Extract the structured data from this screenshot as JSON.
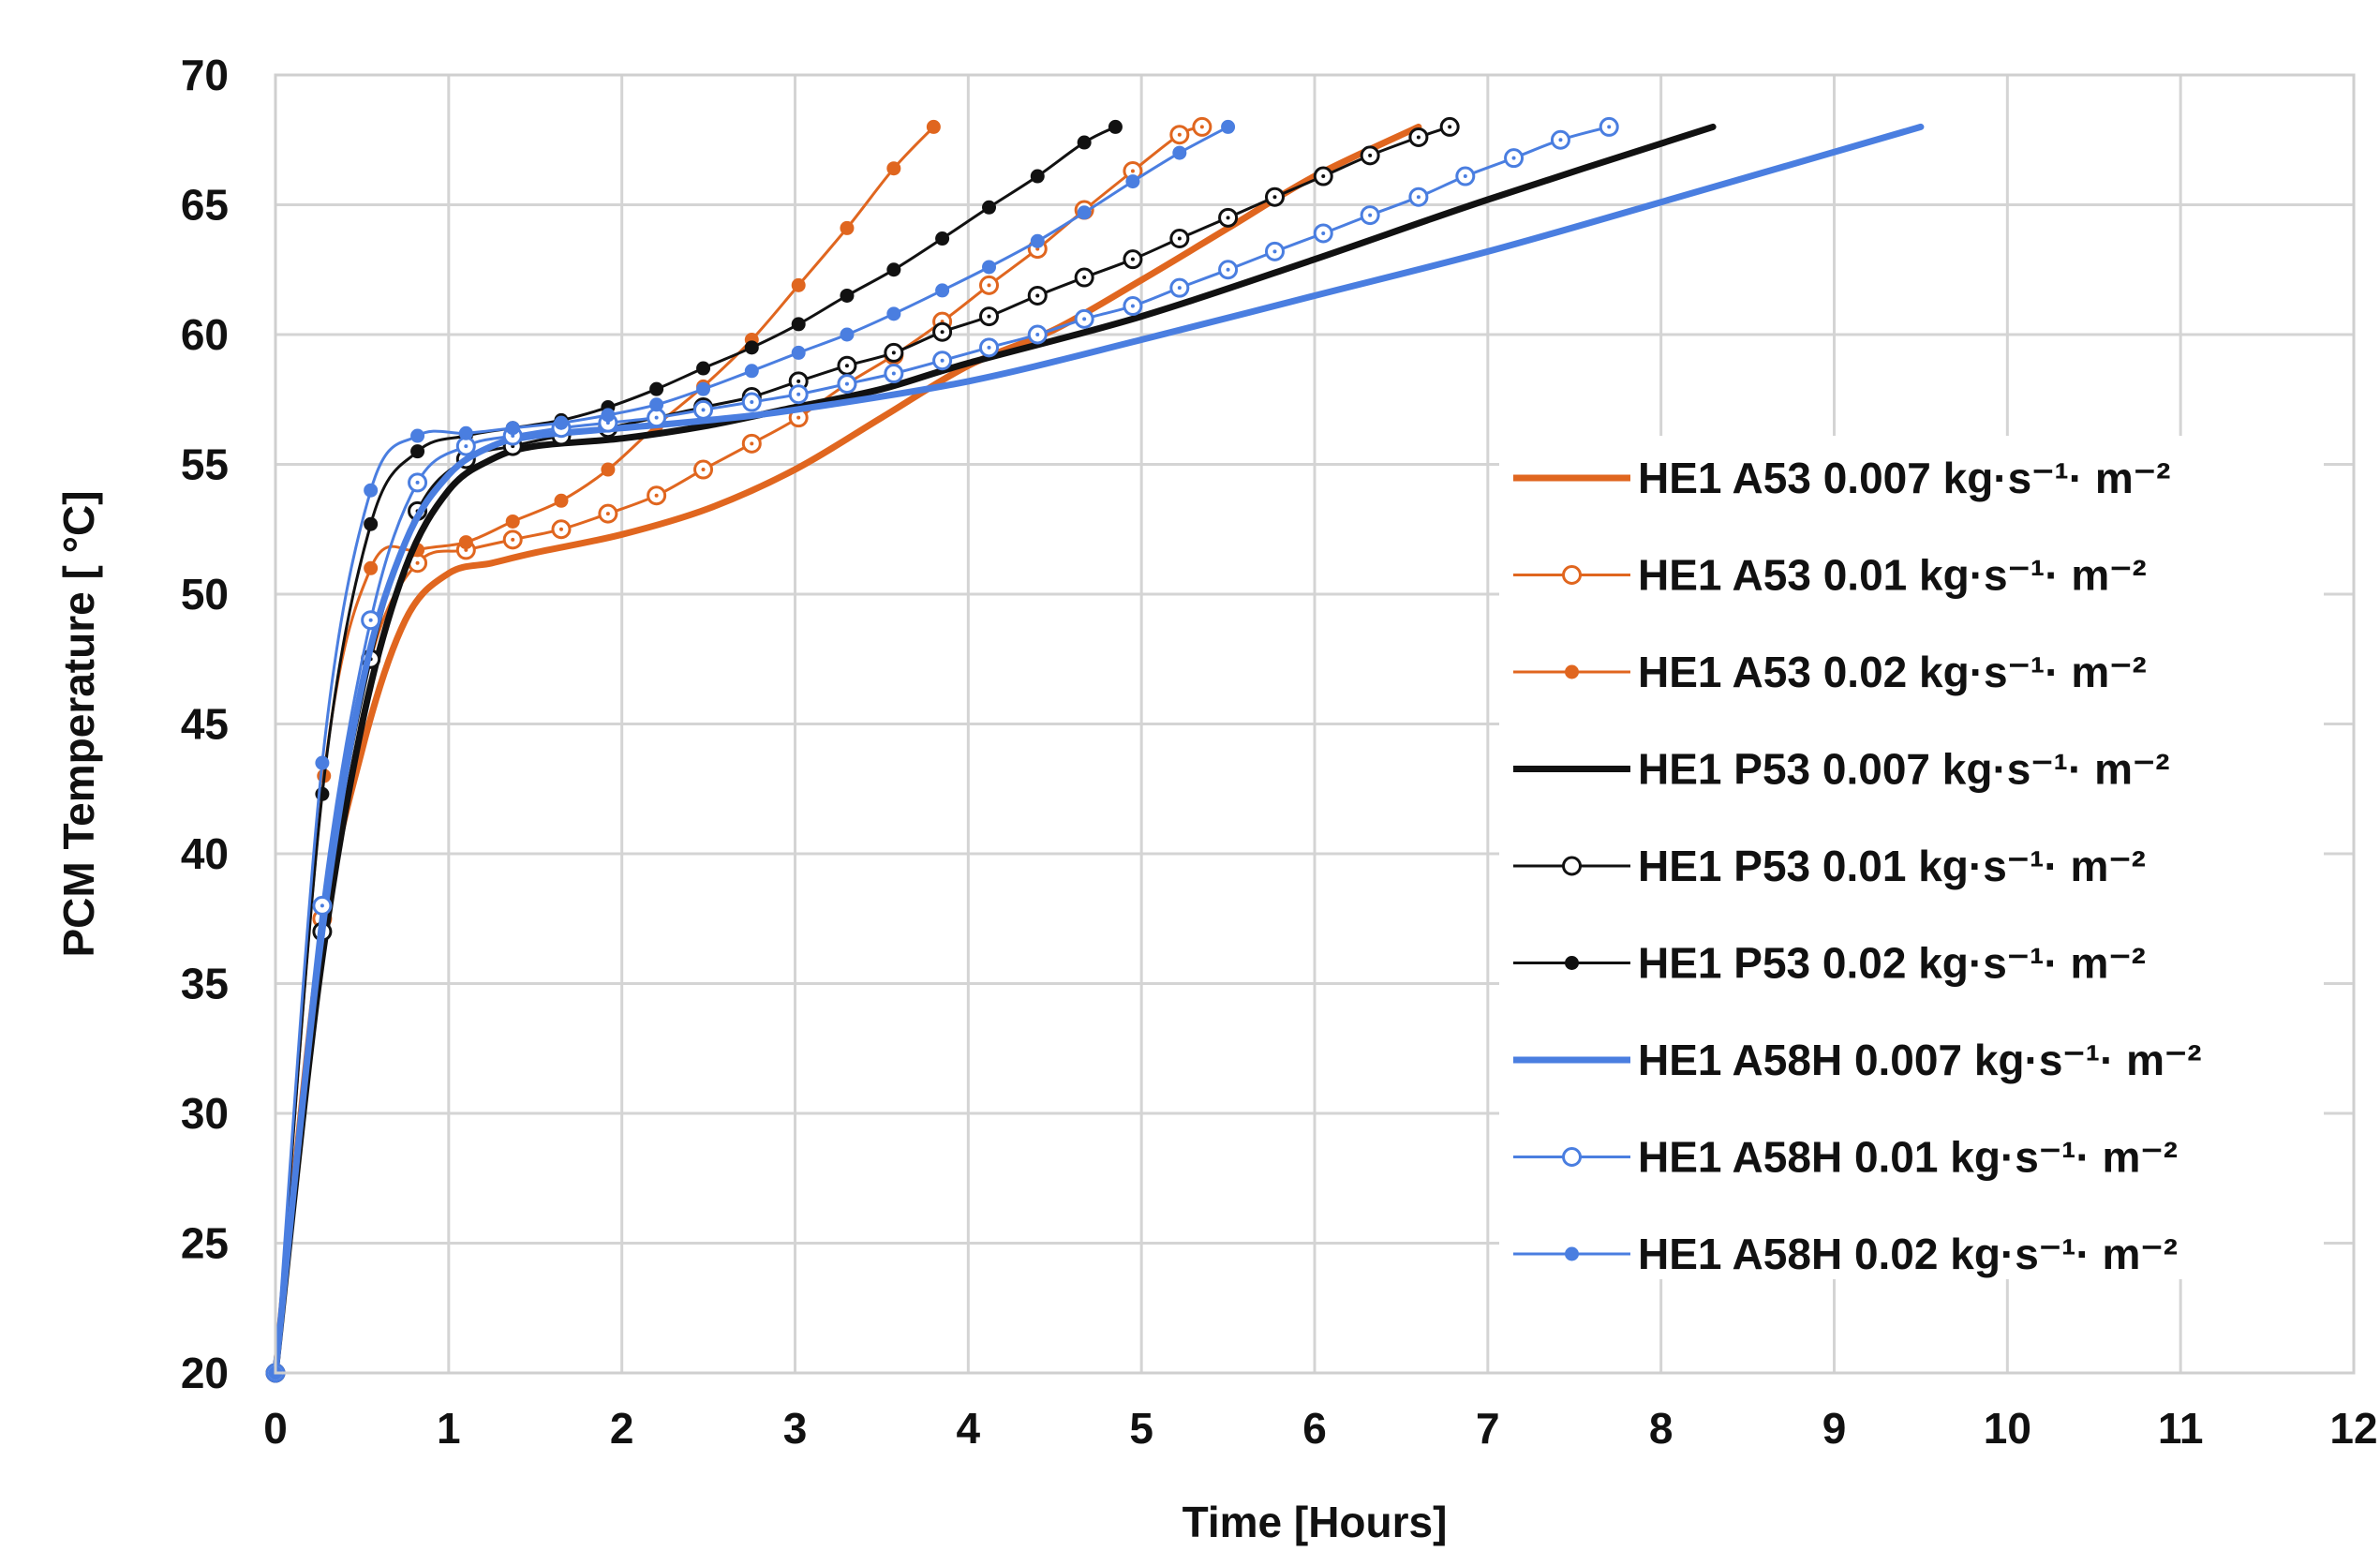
{
  "chart_data": {
    "type": "line",
    "title": "",
    "xlabel": "Time [Hours]",
    "ylabel": "PCM Temperature [ °C]",
    "xlim": [
      0,
      12
    ],
    "ylim": [
      20,
      70
    ],
    "x_ticks": [
      "0",
      "1",
      "2",
      "3",
      "4",
      "5",
      "6",
      "7",
      "8",
      "9",
      "10",
      "11",
      "12"
    ],
    "y_ticks": [
      "20",
      "25",
      "30",
      "35",
      "40",
      "45",
      "50",
      "55",
      "60",
      "65",
      "70"
    ],
    "grid": true,
    "legend_position": "right",
    "series": [
      {
        "name": "HE1 A53 0.007 kg·s⁻¹· m⁻²",
        "color": "#e0661f",
        "style": "thick",
        "marker": "none",
        "x": [
          0,
          0.25,
          0.5,
          0.75,
          1.0,
          1.25,
          1.5,
          2.0,
          2.5,
          3.0,
          3.5,
          4.0,
          4.5,
          5.0,
          5.5,
          6.0,
          6.6
        ],
        "y": [
          20,
          36,
          44,
          49,
          50.8,
          51.2,
          51.6,
          52.3,
          53.3,
          54.8,
          56.8,
          58.8,
          60.2,
          62.1,
          64.1,
          66.1,
          68
        ]
      },
      {
        "name": "HE1 A53 0.01 kg·s⁻¹· m⁻²",
        "color": "#e0661f",
        "style": "thin",
        "marker": "open-circle",
        "x": [
          0,
          0.27,
          0.55,
          0.82,
          1.1,
          1.37,
          1.65,
          1.92,
          2.2,
          2.47,
          2.75,
          3.02,
          3.3,
          3.57,
          3.85,
          4.12,
          4.4,
          4.67,
          4.95,
          5.22,
          5.35
        ],
        "y": [
          20,
          37.5,
          47.5,
          51.2,
          51.7,
          52.1,
          52.5,
          53.1,
          53.8,
          54.8,
          55.8,
          56.8,
          58.1,
          59.2,
          60.5,
          61.9,
          63.3,
          64.8,
          66.3,
          67.7,
          68
        ]
      },
      {
        "name": "HE1 A53 0.02 kg·s⁻¹· m⁻²",
        "color": "#e0661f",
        "style": "thin",
        "marker": "filled-circle",
        "x": [
          0,
          0.28,
          0.55,
          0.82,
          1.1,
          1.37,
          1.65,
          1.92,
          2.2,
          2.47,
          2.75,
          3.02,
          3.3,
          3.57,
          3.8
        ],
        "y": [
          20,
          43,
          51,
          51.7,
          52,
          52.8,
          53.6,
          54.8,
          56.5,
          58,
          59.8,
          61.9,
          64.1,
          66.4,
          68
        ]
      },
      {
        "name": "HE1 P53 0.007 kg·s⁻¹· m⁻²",
        "color": "#111111",
        "style": "thick",
        "marker": "none",
        "x": [
          0,
          0.25,
          0.5,
          0.75,
          1.0,
          1.25,
          1.5,
          2.0,
          2.5,
          3.0,
          3.5,
          4.0,
          5.0,
          6.0,
          7.0,
          8.3
        ],
        "y": [
          20,
          35,
          45,
          51,
          54,
          55.2,
          55.7,
          56,
          56.5,
          57.2,
          57.9,
          58.9,
          60.7,
          62.9,
          65.2,
          68
        ]
      },
      {
        "name": "HE1 P53 0.01 kg·s⁻¹· m⁻²",
        "color": "#111111",
        "style": "thin",
        "marker": "open-circle",
        "x": [
          0,
          0.27,
          0.55,
          0.82,
          1.1,
          1.37,
          1.65,
          1.92,
          2.47,
          2.75,
          3.02,
          3.3,
          3.57,
          3.85,
          4.12,
          4.4,
          4.67,
          4.95,
          5.22,
          5.5,
          5.77,
          6.05,
          6.32,
          6.6,
          6.78
        ],
        "y": [
          20,
          37,
          47.5,
          53.2,
          55.2,
          55.7,
          56.1,
          56.4,
          57.2,
          57.6,
          58.2,
          58.8,
          59.3,
          60.1,
          60.7,
          61.5,
          62.2,
          62.9,
          63.7,
          64.5,
          65.3,
          66.1,
          66.9,
          67.6,
          68
        ]
      },
      {
        "name": "HE1 P53 0.02 kg·s⁻¹· m⁻²",
        "color": "#111111",
        "style": "thin",
        "marker": "filled-circle",
        "x": [
          0,
          0.27,
          0.55,
          0.82,
          1.1,
          1.37,
          1.65,
          1.92,
          2.2,
          2.47,
          2.75,
          3.02,
          3.3,
          3.57,
          3.85,
          4.12,
          4.4,
          4.67,
          4.85
        ],
        "y": [
          20,
          42.3,
          52.7,
          55.5,
          56.1,
          56.4,
          56.7,
          57.2,
          57.9,
          58.7,
          59.5,
          60.4,
          61.5,
          62.5,
          63.7,
          64.9,
          66.1,
          67.4,
          68
        ]
      },
      {
        "name": "HE1 A58H 0.007 kg·s⁻¹· m⁻²",
        "color": "#4a7ee0",
        "style": "thick",
        "marker": "none",
        "x": [
          0,
          0.25,
          0.5,
          0.75,
          1.0,
          1.25,
          1.5,
          2.0,
          2.5,
          3.0,
          4.0,
          5.0,
          6.0,
          7.0,
          8.0,
          9.5
        ],
        "y": [
          20,
          36,
          46.5,
          52,
          54.6,
          55.7,
          56.1,
          56.4,
          56.7,
          57.1,
          58.2,
          59.8,
          61.5,
          63.2,
          65.1,
          68
        ]
      },
      {
        "name": "HE1 A58H 0.01 kg·s⁻¹· m⁻²",
        "color": "#4a7ee0",
        "style": "thin",
        "marker": "open-circle",
        "x": [
          0,
          0.27,
          0.55,
          0.82,
          1.1,
          1.37,
          1.65,
          1.92,
          2.2,
          2.47,
          2.75,
          3.02,
          3.3,
          3.57,
          3.85,
          4.12,
          4.4,
          4.67,
          4.95,
          5.22,
          5.5,
          5.77,
          6.05,
          6.32,
          6.6,
          6.87,
          7.15,
          7.42,
          7.7
        ],
        "y": [
          20,
          38,
          49,
          54.3,
          55.7,
          56.1,
          56.4,
          56.6,
          56.8,
          57.1,
          57.4,
          57.7,
          58.1,
          58.5,
          59,
          59.5,
          60,
          60.6,
          61.1,
          61.8,
          62.5,
          63.2,
          63.9,
          64.6,
          65.3,
          66.1,
          66.8,
          67.5,
          68
        ]
      },
      {
        "name": "HE1 A58H 0.02 kg·s⁻¹· m⁻²",
        "color": "#4a7ee0",
        "style": "thin",
        "marker": "filled-circle",
        "x": [
          0,
          0.27,
          0.55,
          0.82,
          1.1,
          1.37,
          1.65,
          1.92,
          2.2,
          2.47,
          2.75,
          3.02,
          3.3,
          3.57,
          3.85,
          4.12,
          4.4,
          4.67,
          4.95,
          5.22,
          5.5
        ],
        "y": [
          20,
          43.5,
          54,
          56.1,
          56.2,
          56.4,
          56.6,
          56.9,
          57.3,
          57.9,
          58.6,
          59.3,
          60,
          60.8,
          61.7,
          62.6,
          63.6,
          64.7,
          65.9,
          67,
          68
        ]
      }
    ]
  }
}
